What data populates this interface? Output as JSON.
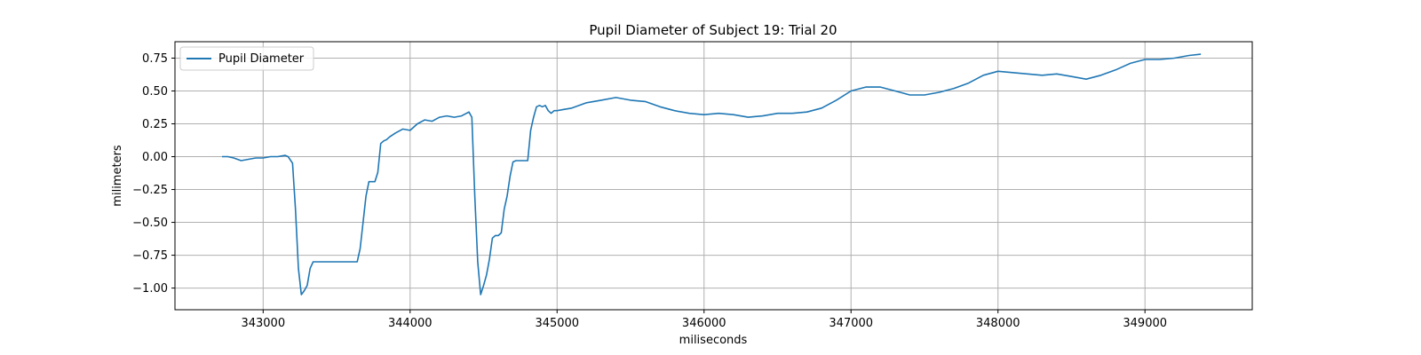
{
  "chart_data": {
    "type": "line",
    "title": "Pupil Diameter of Subject 19: Trial 20",
    "xlabel": "miliseconds",
    "ylabel": "milimeters",
    "xlim": [
      342400,
      349730
    ],
    "ylim": [
      -1.165,
      0.875
    ],
    "xticks": [
      343000,
      344000,
      345000,
      346000,
      347000,
      348000,
      349000
    ],
    "yticks": [
      -1.0,
      -0.75,
      -0.5,
      -0.25,
      0.0,
      0.25,
      0.5,
      0.75
    ],
    "xtick_labels": [
      "343000",
      "344000",
      "345000",
      "346000",
      "347000",
      "348000",
      "349000"
    ],
    "ytick_labels": [
      "−1.00",
      "−0.75",
      "−0.50",
      "−0.25",
      "0.00",
      "0.25",
      "0.50",
      "0.75"
    ],
    "grid": true,
    "legend_position": "upper-left",
    "series": [
      {
        "name": "Pupil Diameter",
        "color": "#1f77b4",
        "x": [
          342720,
          342760,
          342800,
          342850,
          342900,
          342950,
          343000,
          343050,
          343100,
          343150,
          343170,
          343200,
          343220,
          343240,
          343260,
          343280,
          343300,
          343320,
          343340,
          343400,
          343500,
          343600,
          343640,
          343660,
          343680,
          343700,
          343720,
          343740,
          343760,
          343780,
          343800,
          343820,
          343840,
          343860,
          343900,
          343950,
          344000,
          344050,
          344100,
          344150,
          344200,
          344250,
          344300,
          344350,
          344400,
          344420,
          344440,
          344460,
          344480,
          344500,
          344520,
          344540,
          344560,
          344580,
          344600,
          344620,
          344640,
          344660,
          344680,
          344700,
          344720,
          344760,
          344800,
          344820,
          344840,
          344860,
          344880,
          344900,
          344920,
          344940,
          344960,
          344980,
          345000,
          345050,
          345100,
          345150,
          345200,
          345300,
          345400,
          345500,
          345600,
          345700,
          345800,
          345900,
          346000,
          346100,
          346200,
          346300,
          346400,
          346500,
          346600,
          346700,
          346800,
          346900,
          347000,
          347100,
          347200,
          347300,
          347400,
          347500,
          347600,
          347700,
          347800,
          347900,
          348000,
          348100,
          348200,
          348300,
          348400,
          348500,
          348600,
          348700,
          348800,
          348900,
          349000,
          349100,
          349200,
          349300,
          349380
        ],
        "y": [
          0.0,
          0.0,
          -0.01,
          -0.03,
          -0.02,
          -0.01,
          -0.01,
          0.0,
          0.0,
          0.01,
          0.0,
          -0.05,
          -0.4,
          -0.85,
          -1.05,
          -1.02,
          -0.98,
          -0.85,
          -0.8,
          -0.8,
          -0.8,
          -0.8,
          -0.8,
          -0.7,
          -0.5,
          -0.3,
          -0.19,
          -0.19,
          -0.19,
          -0.12,
          0.1,
          0.12,
          0.13,
          0.15,
          0.18,
          0.21,
          0.2,
          0.25,
          0.28,
          0.27,
          0.3,
          0.31,
          0.3,
          0.31,
          0.34,
          0.3,
          -0.3,
          -0.8,
          -1.05,
          -0.98,
          -0.9,
          -0.78,
          -0.62,
          -0.6,
          -0.6,
          -0.58,
          -0.4,
          -0.3,
          -0.15,
          -0.04,
          -0.03,
          -0.03,
          -0.03,
          0.2,
          0.3,
          0.38,
          0.39,
          0.38,
          0.39,
          0.35,
          0.33,
          0.35,
          0.35,
          0.36,
          0.37,
          0.39,
          0.41,
          0.43,
          0.45,
          0.43,
          0.42,
          0.38,
          0.35,
          0.33,
          0.32,
          0.33,
          0.32,
          0.3,
          0.31,
          0.33,
          0.33,
          0.34,
          0.37,
          0.43,
          0.5,
          0.53,
          0.53,
          0.5,
          0.47,
          0.47,
          0.49,
          0.52,
          0.56,
          0.62,
          0.65,
          0.64,
          0.63,
          0.62,
          0.63,
          0.61,
          0.59,
          0.62,
          0.66,
          0.71,
          0.74,
          0.74,
          0.75,
          0.77,
          0.78
        ]
      }
    ]
  }
}
